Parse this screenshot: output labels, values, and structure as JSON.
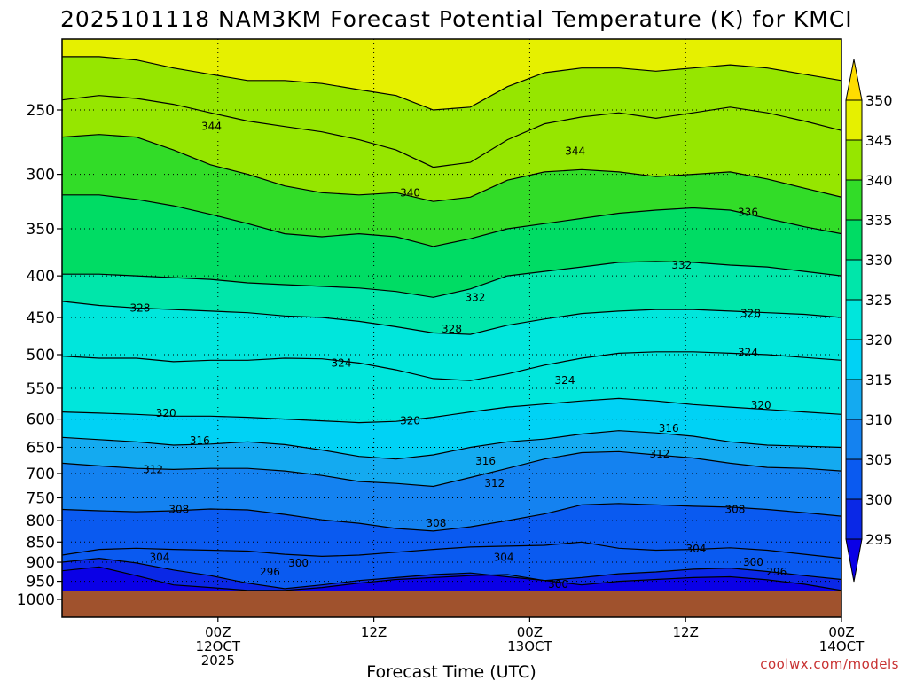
{
  "chart_data": {
    "type": "heatmap",
    "title": "2025101118 NAM3KM Forecast Potential Temperature (K) for KMCI",
    "xlabel": "Forecast Time (UTC)",
    "ylabel": "",
    "y_axis": {
      "scale": "log-pressure",
      "inverted": true,
      "range_hpa": [
        1000,
        200
      ],
      "ticks": [
        "250",
        "300",
        "350",
        "400",
        "450",
        "500",
        "550",
        "600",
        "650",
        "700",
        "750",
        "800",
        "850",
        "900",
        "950",
        "1000"
      ],
      "tick_values": [
        250,
        300,
        350,
        400,
        450,
        500,
        550,
        600,
        650,
        700,
        750,
        800,
        850,
        900,
        950,
        1000
      ]
    },
    "x_axis": {
      "range_hours": [
        -6,
        54
      ],
      "ticks": [
        {
          "hour": 6,
          "lines": [
            "00Z",
            "12OCT",
            "2025"
          ]
        },
        {
          "hour": 18,
          "lines": [
            "12Z"
          ]
        },
        {
          "hour": 30,
          "lines": [
            "00Z",
            "13OCT"
          ]
        },
        {
          "hour": 42,
          "lines": [
            "12Z"
          ]
        },
        {
          "hour": 54,
          "lines": [
            "00Z",
            "14OCT"
          ]
        }
      ]
    },
    "grid": "dotted",
    "colorbar": {
      "levels": [
        295,
        300,
        305,
        310,
        315,
        320,
        325,
        330,
        335,
        340,
        345,
        350
      ],
      "labels": [
        "295",
        "300",
        "305",
        "310",
        "315",
        "320",
        "325",
        "330",
        "335",
        "340",
        "345",
        "350"
      ],
      "colors": [
        "#0a00e6",
        "#0a28e6",
        "#0a5af0",
        "#1482f0",
        "#14aaf0",
        "#00d2f5",
        "#00e6dc",
        "#00e6aa",
        "#00dc64",
        "#32dc28",
        "#96e600",
        "#e6f000",
        "#ffdc00"
      ]
    },
    "contour_interval_k": 4,
    "isentropes": [
      {
        "value": 296,
        "p": [
          922,
          912,
          935,
          960,
          967,
          975,
          975,
          967,
          955,
          945,
          940,
          935,
          932,
          948,
          960,
          950,
          945,
          940,
          938,
          946,
          958,
          975
        ]
      },
      {
        "value": 300,
        "p": [
          900,
          890,
          902,
          920,
          935,
          955,
          970,
          960,
          948,
          940,
          932,
          928,
          938,
          948,
          940,
          930,
          925,
          918,
          915,
          924,
          935,
          945
        ]
      },
      {
        "value": 304,
        "p": [
          882,
          868,
          865,
          868,
          870,
          872,
          880,
          885,
          882,
          875,
          868,
          862,
          860,
          858,
          850,
          865,
          870,
          868,
          864,
          870,
          880,
          890
        ]
      },
      {
        "value": 308,
        "p": [
          775,
          778,
          780,
          778,
          774,
          776,
          786,
          798,
          806,
          818,
          824,
          814,
          800,
          785,
          765,
          762,
          765,
          768,
          770,
          775,
          782,
          790
        ]
      },
      {
        "value": 312,
        "p": [
          680,
          685,
          690,
          692,
          690,
          690,
          695,
          704,
          716,
          720,
          726,
          708,
          690,
          672,
          660,
          658,
          664,
          670,
          680,
          688,
          690,
          695
        ]
      },
      {
        "value": 316,
        "p": [
          632,
          636,
          640,
          646,
          644,
          640,
          645,
          655,
          667,
          672,
          664,
          650,
          640,
          635,
          626,
          620,
          624,
          630,
          640,
          646,
          648,
          650
        ]
      },
      {
        "value": 320,
        "p": [
          588,
          590,
          592,
          595,
          595,
          597,
          600,
          603,
          606,
          604,
          597,
          588,
          580,
          575,
          570,
          566,
          570,
          576,
          580,
          584,
          588,
          592
        ]
      },
      {
        "value": 324,
        "p": [
          502,
          505,
          505,
          510,
          508,
          508,
          505,
          506,
          512,
          522,
          535,
          538,
          528,
          515,
          505,
          498,
          496,
          496,
          498,
          500,
          504,
          508
        ]
      },
      {
        "value": 328,
        "p": [
          430,
          435,
          438,
          440,
          442,
          444,
          448,
          450,
          455,
          462,
          470,
          472,
          460,
          452,
          445,
          442,
          440,
          440,
          442,
          444,
          446,
          450
        ]
      },
      {
        "value": 332,
        "p": [
          398,
          398,
          400,
          402,
          404,
          408,
          410,
          412,
          414,
          418,
          425,
          415,
          400,
          395,
          390,
          385,
          384,
          385,
          388,
          390,
          395,
          400
        ]
      },
      {
        "value": 336,
        "p": [
          318,
          318,
          322,
          328,
          336,
          345,
          355,
          358,
          355,
          358,
          368,
          360,
          350,
          345,
          340,
          335,
          332,
          330,
          332,
          340,
          348,
          355
        ]
      },
      {
        "value": 340,
        "p": [
          270,
          268,
          270,
          280,
          292,
          300,
          310,
          316,
          318,
          316,
          324,
          320,
          305,
          298,
          296,
          298,
          302,
          300,
          298,
          304,
          312,
          320
        ]
      },
      {
        "value": 344,
        "p": [
          243,
          240,
          242,
          246,
          252,
          258,
          262,
          266,
          272,
          280,
          294,
          290,
          272,
          260,
          255,
          252,
          256,
          252,
          248,
          252,
          258,
          265
        ]
      },
      {
        "value": 348,
        "p": [
          215,
          215,
          217,
          222,
          226,
          230,
          230,
          232,
          236,
          240,
          250,
          248,
          234,
          225,
          222,
          222,
          224,
          222,
          220,
          222,
          226,
          230
        ]
      }
    ],
    "contour_labels": [
      {
        "text": "344",
        "hour": 5.5,
        "p": 262
      },
      {
        "text": "344",
        "hour": 33.5,
        "p": 281
      },
      {
        "text": "340",
        "hour": 20.8,
        "p": 316
      },
      {
        "text": "336",
        "hour": 46.8,
        "p": 334
      },
      {
        "text": "332",
        "hour": 41.7,
        "p": 388
      },
      {
        "text": "332",
        "hour": 25.8,
        "p": 425
      },
      {
        "text": "328",
        "hour": 0.0,
        "p": 438
      },
      {
        "text": "328",
        "hour": 47.0,
        "p": 445
      },
      {
        "text": "328",
        "hour": 24.0,
        "p": 465
      },
      {
        "text": "324",
        "hour": 46.8,
        "p": 497
      },
      {
        "text": "324",
        "hour": 15.5,
        "p": 512
      },
      {
        "text": "324",
        "hour": 32.7,
        "p": 538
      },
      {
        "text": "320",
        "hour": 47.8,
        "p": 577
      },
      {
        "text": "320",
        "hour": 2.0,
        "p": 590
      },
      {
        "text": "320",
        "hour": 20.8,
        "p": 603
      },
      {
        "text": "316",
        "hour": 40.7,
        "p": 616
      },
      {
        "text": "316",
        "hour": 4.6,
        "p": 638
      },
      {
        "text": "316",
        "hour": 26.6,
        "p": 676
      },
      {
        "text": "312",
        "hour": 40.0,
        "p": 662
      },
      {
        "text": "312",
        "hour": 1.0,
        "p": 692
      },
      {
        "text": "312",
        "hour": 27.3,
        "p": 720
      },
      {
        "text": "308",
        "hour": 3.0,
        "p": 775
      },
      {
        "text": "308",
        "hour": 45.8,
        "p": 775
      },
      {
        "text": "308",
        "hour": 22.8,
        "p": 806
      },
      {
        "text": "304",
        "hour": 42.8,
        "p": 867
      },
      {
        "text": "304",
        "hour": 1.5,
        "p": 888
      },
      {
        "text": "304",
        "hour": 28.0,
        "p": 888
      },
      {
        "text": "300",
        "hour": 47.2,
        "p": 900
      },
      {
        "text": "300",
        "hour": 12.2,
        "p": 902
      },
      {
        "text": "300",
        "hour": 32.2,
        "p": 958
      },
      {
        "text": "296",
        "hour": 49.0,
        "p": 925
      },
      {
        "text": "296",
        "hour": 10.0,
        "p": 925
      }
    ]
  },
  "credit": "coolwx.com/models"
}
